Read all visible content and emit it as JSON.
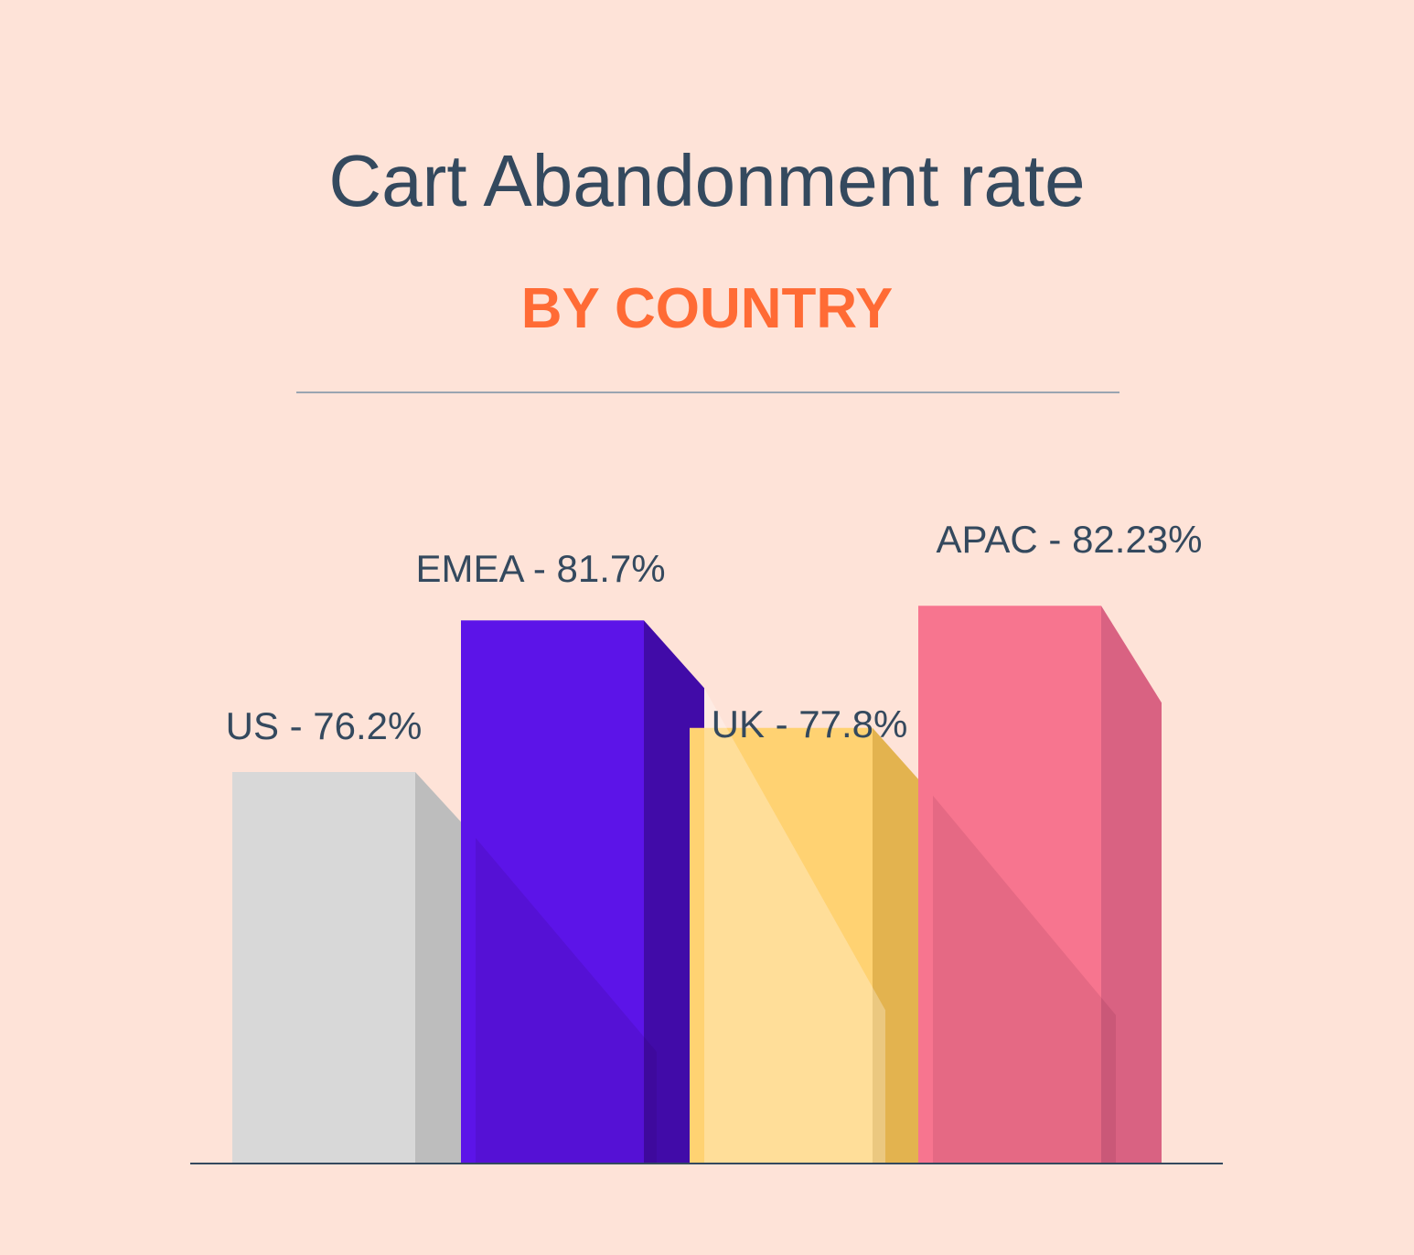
{
  "chart_data": {
    "type": "bar",
    "title": "Cart Abandonment rate",
    "subtitle": "BY COUNTRY",
    "categories": [
      "US",
      "EMEA",
      "UK",
      "APAC"
    ],
    "values": [
      76.2,
      81.7,
      77.8,
      82.23
    ],
    "labels": [
      "US - 76.2%",
      "EMEA - 81.7%",
      "UK - 77.8%",
      "APAC - 82.23%"
    ],
    "ylim": [
      62,
      84
    ],
    "grid": false,
    "legend": "none",
    "colors": {
      "front": [
        "#d8d8d8",
        "#5c14e8",
        "#ffd272",
        "#f7758f"
      ],
      "side": [
        "#bdbdbd",
        "#410ba8",
        "#e3b34f",
        "#d96282"
      ],
      "title": "#34495e",
      "subtitle": "#ff6b35",
      "background": "#fee3d8"
    }
  }
}
